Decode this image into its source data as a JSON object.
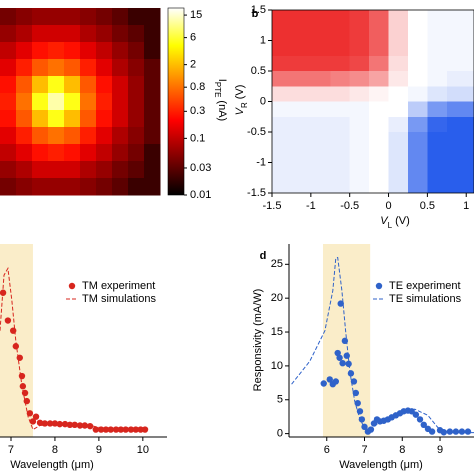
{
  "chart_data": [
    {
      "type": "heatmap",
      "colormap": "hot",
      "colorbar": {
        "label": "I",
        "label_sub": "PTE",
        "label_unit": "(nA)",
        "scale": "log",
        "lim": [
          0.01,
          20
        ],
        "ticks": [
          15,
          6,
          2,
          0.8,
          0.3,
          0.1,
          0.03,
          0.01
        ]
      },
      "z": [
        [
          0.04,
          0.05,
          0.06,
          0.06,
          0.06,
          0.05,
          0.04,
          0.03,
          0.02,
          0.02
        ],
        [
          0.06,
          0.08,
          0.12,
          0.12,
          0.12,
          0.08,
          0.06,
          0.04,
          0.03,
          0.02
        ],
        [
          0.1,
          0.15,
          0.25,
          0.3,
          0.25,
          0.15,
          0.1,
          0.06,
          0.04,
          0.02
        ],
        [
          0.15,
          0.3,
          0.6,
          0.8,
          0.6,
          0.3,
          0.15,
          0.08,
          0.05,
          0.03
        ],
        [
          0.25,
          0.6,
          2,
          5,
          2,
          0.6,
          0.25,
          0.12,
          0.06,
          0.03
        ],
        [
          0.3,
          0.8,
          5,
          12,
          5,
          0.8,
          0.3,
          0.12,
          0.06,
          0.03
        ],
        [
          0.25,
          0.6,
          2,
          5,
          2,
          0.6,
          0.25,
          0.12,
          0.06,
          0.03
        ],
        [
          0.15,
          0.3,
          0.6,
          0.8,
          0.6,
          0.3,
          0.15,
          0.08,
          0.05,
          0.03
        ],
        [
          0.1,
          0.15,
          0.25,
          0.3,
          0.25,
          0.15,
          0.1,
          0.06,
          0.04,
          0.02
        ],
        [
          0.06,
          0.08,
          0.12,
          0.12,
          0.12,
          0.08,
          0.06,
          0.04,
          0.03,
          0.02
        ],
        [
          0.04,
          0.05,
          0.06,
          0.06,
          0.06,
          0.05,
          0.04,
          0.03,
          0.02,
          0.02
        ]
      ]
    },
    {
      "type": "heatmap",
      "panel": "b",
      "colormap": "bwr",
      "zlim": [
        -1,
        1
      ],
      "xlabel": "V",
      "xlabel_sub": "L",
      "xlabel_unit": "(V)",
      "ylabel": "V",
      "ylabel_sub": "R",
      "ylabel_unit": "(V)",
      "xlim": [
        -1.5,
        1.1
      ],
      "ylim": [
        -1.5,
        1.5
      ],
      "xticks": [
        -1.5,
        -1,
        -0.5,
        0,
        0.5,
        1
      ],
      "yticks": [
        -1.5,
        -1,
        -0.5,
        0,
        0.5,
        1,
        1.5
      ],
      "x": [
        -1.375,
        -1.125,
        -0.875,
        -0.625,
        -0.375,
        -0.125,
        0.125,
        0.375,
        0.625,
        0.875,
        1.125
      ],
      "y": [
        1.375,
        1.125,
        0.875,
        0.625,
        0.375,
        0.125,
        -0.125,
        -0.375,
        -0.625,
        -0.875,
        -1.125,
        -1.375
      ],
      "z": [
        [
          0.9,
          0.9,
          0.9,
          0.9,
          0.85,
          0.7,
          0.2,
          0,
          -0.05,
          -0.05,
          -0.05
        ],
        [
          0.9,
          0.9,
          0.9,
          0.9,
          0.85,
          0.7,
          0.2,
          0,
          -0.05,
          -0.05,
          -0.05
        ],
        [
          0.9,
          0.9,
          0.9,
          0.9,
          0.85,
          0.7,
          0.2,
          0,
          -0.05,
          -0.05,
          -0.05
        ],
        [
          0.85,
          0.85,
          0.85,
          0.85,
          0.8,
          0.6,
          0.15,
          0,
          -0.05,
          -0.05,
          -0.05
        ],
        [
          0.6,
          0.6,
          0.6,
          0.55,
          0.5,
          0.4,
          0.1,
          0,
          -0.05,
          -0.1,
          -0.1
        ],
        [
          0.15,
          0.15,
          0.15,
          0.15,
          0.1,
          0.05,
          0,
          -0.05,
          -0.15,
          -0.2,
          -0.2
        ],
        [
          -0.05,
          -0.05,
          -0.05,
          -0.05,
          -0.05,
          0,
          0,
          -0.3,
          -0.6,
          -0.7,
          -0.7
        ],
        [
          -0.1,
          -0.1,
          -0.1,
          -0.1,
          -0.05,
          0,
          -0.1,
          -0.6,
          -0.9,
          -0.95,
          -0.95
        ],
        [
          -0.1,
          -0.1,
          -0.1,
          -0.1,
          -0.05,
          0,
          -0.15,
          -0.7,
          -0.95,
          -0.95,
          -0.95
        ],
        [
          -0.1,
          -0.1,
          -0.1,
          -0.1,
          -0.05,
          0,
          -0.15,
          -0.7,
          -0.95,
          -0.95,
          -0.95
        ],
        [
          -0.1,
          -0.1,
          -0.1,
          -0.1,
          -0.05,
          0,
          -0.15,
          -0.7,
          -0.95,
          -0.95,
          -0.95
        ],
        [
          -0.1,
          -0.1,
          -0.1,
          -0.1,
          -0.05,
          0,
          -0.15,
          -0.7,
          -0.95,
          -0.95,
          -0.95
        ]
      ]
    },
    {
      "type": "scatter",
      "xlabel": "Wavelength (μm)",
      "xlim": [
        6.75,
        10.55
      ],
      "xticks": [
        7,
        8,
        9,
        10
      ],
      "ylim": [
        -0.5,
        28
      ],
      "shade": [
        6.2,
        7.5
      ],
      "shade_color": "#faedc9",
      "legend": "upper right",
      "series": [
        {
          "name": "TM experiment",
          "color": "#d7261e",
          "style": "markers",
          "x": [
            6.82,
            6.93,
            7.05,
            7.11,
            7.2,
            7.25,
            7.27,
            7.32,
            7.36,
            7.43,
            7.5,
            7.57,
            7.66,
            7.77,
            7.89,
            8.0,
            8.11,
            8.23,
            8.34,
            8.45,
            8.57,
            8.68,
            8.8,
            8.93,
            9.05,
            9.16,
            9.27,
            9.39,
            9.5,
            9.61,
            9.73,
            9.84,
            9.95,
            10.05
          ],
          "values": [
            20.8,
            16.7,
            15.2,
            12.9,
            11.2,
            8.5,
            7,
            6,
            4.8,
            3,
            1.8,
            2.5,
            1.6,
            1.5,
            1.5,
            1.5,
            1.4,
            1.4,
            1.3,
            1.3,
            1.2,
            1.2,
            1.1,
            0.6,
            0.6,
            0.6,
            0.6,
            0.6,
            0.6,
            0.6,
            0.6,
            0.6,
            0.6,
            0.6
          ]
        },
        {
          "name": "TM simulations",
          "color": "#d7261e",
          "style": "dashed",
          "x": [
            6.75,
            6.84,
            6.93,
            7.02,
            7.11,
            7.25,
            7.39,
            7.5,
            7.66,
            8.11,
            8.8,
            9.25,
            10.05
          ],
          "values": [
            15.2,
            23.4,
            24.4,
            19.6,
            13.7,
            7,
            2.5,
            0.6,
            1.2,
            1.5,
            1.2,
            0.6,
            0.45
          ]
        }
      ]
    },
    {
      "type": "scatter",
      "panel": "d",
      "xlabel": "Wavelength (μm)",
      "ylabel": "Responsivity (mA/W)",
      "xlim": [
        5,
        9.9
      ],
      "xticks": [
        6,
        7,
        8,
        9
      ],
      "ylim": [
        -0.5,
        28
      ],
      "yticks": [
        0,
        5,
        10,
        15,
        20,
        25
      ],
      "shade": [
        5.9,
        7.15
      ],
      "shade_color": "#faedc9",
      "legend": "upper right",
      "series": [
        {
          "name": "TE experiment",
          "color": "#2f62c9",
          "style": "markers",
          "x": [
            5.92,
            6.08,
            6.16,
            6.24,
            6.29,
            6.34,
            6.37,
            6.42,
            6.48,
            6.53,
            6.58,
            6.64,
            6.72,
            6.77,
            6.82,
            6.88,
            6.93,
            7.0,
            7.09,
            7.17,
            7.25,
            7.33,
            7.41,
            7.51,
            7.62,
            7.72,
            7.83,
            7.94,
            8.04,
            8.15,
            8.25,
            8.36,
            8.47,
            8.57,
            8.68,
            8.79,
            9.0,
            9.1,
            9.26,
            9.42,
            9.58,
            9.74
          ],
          "values": [
            7.4,
            8.0,
            7.3,
            7.7,
            11.9,
            11.2,
            19.2,
            10.4,
            13.7,
            11.5,
            10.3,
            8.9,
            7.7,
            6.0,
            4.5,
            3.3,
            2.1,
            1.0,
            0.3,
            0.6,
            1.5,
            2.1,
            1.8,
            1.9,
            2.1,
            2.4,
            2.7,
            3.0,
            3.3,
            3.4,
            3.3,
            2.8,
            2.1,
            1.3,
            0.7,
            0.3,
            0.5,
            0.2,
            0.3,
            0.3,
            0.3,
            0.3
          ]
        },
        {
          "name": "TE simulations",
          "color": "#2f62c9",
          "style": "dashed",
          "x": [
            5.07,
            5.55,
            5.95,
            6.16,
            6.24,
            6.29,
            6.4,
            6.5,
            6.61,
            6.74,
            6.88,
            7.03,
            7.19,
            7.41,
            7.8,
            8.07,
            8.33,
            8.68,
            8.94,
            9.26,
            9.9
          ],
          "values": [
            7.3,
            10.7,
            15.2,
            21.1,
            25.9,
            26.0,
            21.1,
            15.2,
            9.2,
            4.8,
            2.1,
            0.6,
            0.7,
            1.8,
            2.7,
            3.3,
            3.6,
            2.7,
            0.9,
            0.15,
            0.15
          ]
        }
      ]
    }
  ]
}
